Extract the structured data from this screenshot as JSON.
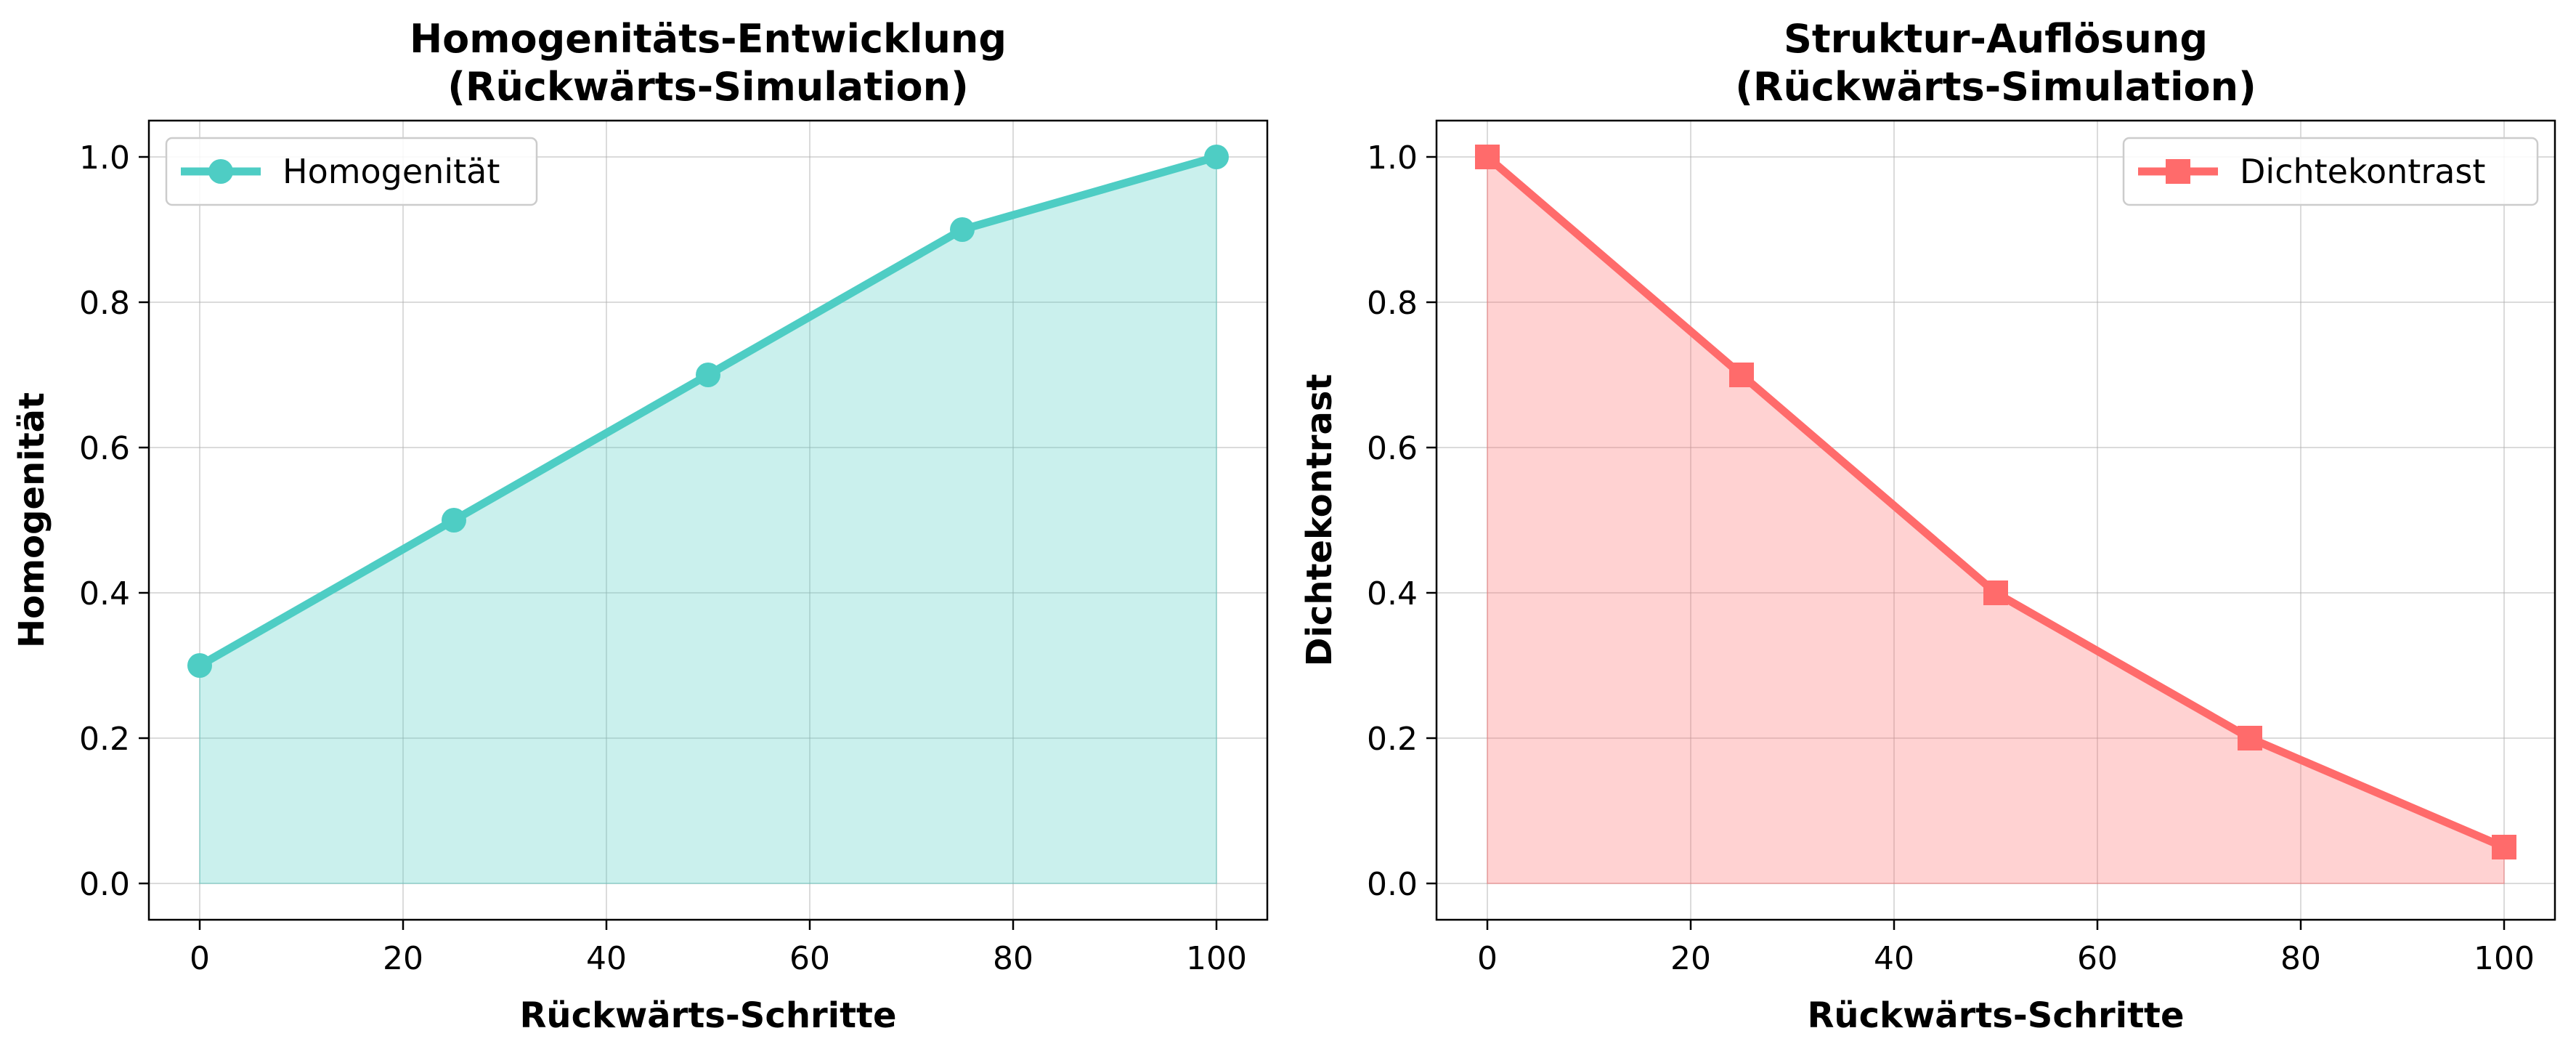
{
  "chart_data": [
    {
      "type": "area",
      "title": [
        "Homogenitäts-Entwicklung",
        "(Rückwärts-Simulation)"
      ],
      "xlabel": "Rückwärts-Schritte",
      "ylabel": "Homogenität",
      "x": [
        0,
        25,
        50,
        75,
        100
      ],
      "series": [
        {
          "name": "Homogenität",
          "values": [
            0.3,
            0.5,
            0.7,
            0.9,
            1.0
          ],
          "color": "#4ECDC4",
          "marker": "circle"
        }
      ],
      "xlim": [
        -5,
        105
      ],
      "ylim": [
        -0.05,
        1.05
      ],
      "xticks": [
        0,
        20,
        40,
        60,
        80,
        100
      ],
      "xtick_labels": [
        "0",
        "20",
        "40",
        "60",
        "80",
        "100"
      ],
      "yticks": [
        0.0,
        0.2,
        0.4,
        0.6,
        0.8,
        1.0
      ],
      "ytick_labels": [
        "0.0",
        "0.2",
        "0.4",
        "0.6",
        "0.8",
        "1.0"
      ],
      "grid": true,
      "legend_position": "upper-left"
    },
    {
      "type": "area",
      "title": [
        "Struktur-Auflösung",
        "(Rückwärts-Simulation)"
      ],
      "xlabel": "Rückwärts-Schritte",
      "ylabel": "Dichtekontrast",
      "x": [
        0,
        25,
        50,
        75,
        100
      ],
      "series": [
        {
          "name": "Dichtekontrast",
          "values": [
            1.0,
            0.7,
            0.4,
            0.2,
            0.05
          ],
          "color": "#FF6B6B",
          "marker": "square"
        }
      ],
      "xlim": [
        -5,
        105
      ],
      "ylim": [
        -0.05,
        1.05
      ],
      "xticks": [
        0,
        20,
        40,
        60,
        80,
        100
      ],
      "xtick_labels": [
        "0",
        "20",
        "40",
        "60",
        "80",
        "100"
      ],
      "yticks": [
        0.0,
        0.2,
        0.4,
        0.6,
        0.8,
        1.0
      ],
      "ytick_labels": [
        "0.0",
        "0.2",
        "0.4",
        "0.6",
        "0.8",
        "1.0"
      ],
      "grid": true,
      "legend_position": "upper-right"
    }
  ]
}
